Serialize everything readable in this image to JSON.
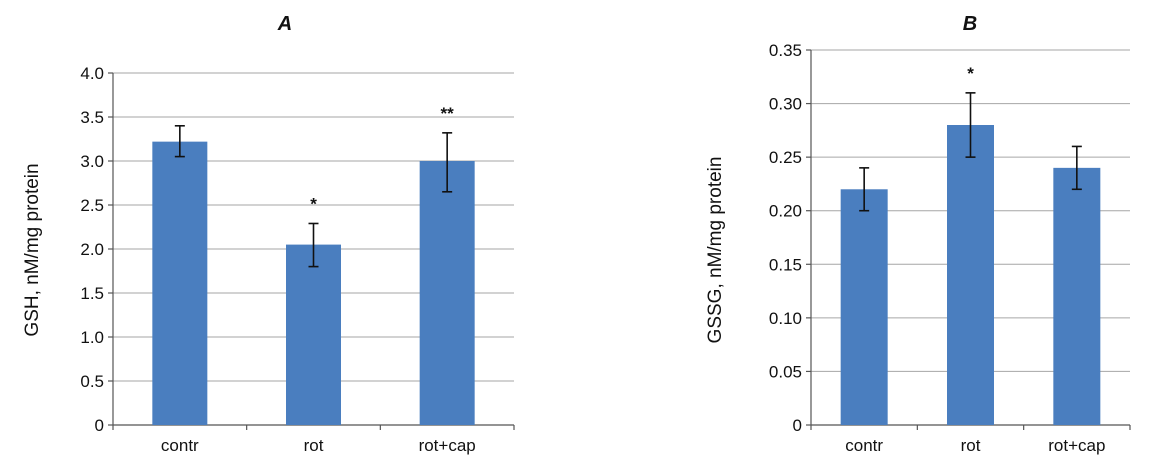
{
  "chart_data": [
    {
      "type": "bar",
      "title": "A",
      "ylabel": "GSH, nM/mg protein",
      "categories": [
        "contr",
        "rot",
        "rot+cap"
      ],
      "values": [
        3.22,
        2.05,
        3.0
      ],
      "error_low": [
        3.05,
        1.8,
        2.65
      ],
      "error_high": [
        3.4,
        2.29,
        3.32
      ],
      "annotations": [
        "",
        "*",
        "**"
      ],
      "ylim": [
        0,
        4.0
      ],
      "yticks": [
        "0",
        "0.5",
        "1.0",
        "1.5",
        "2.0",
        "2.5",
        "3.0",
        "3.5",
        "4.0"
      ],
      "grid": true,
      "bar_color": "#4a7ebf"
    },
    {
      "type": "bar",
      "title": "B",
      "ylabel": "GSSG, nM/mg protein",
      "categories": [
        "contr",
        "rot",
        "rot+cap"
      ],
      "values": [
        0.22,
        0.28,
        0.24
      ],
      "error_low": [
        0.2,
        0.25,
        0.22
      ],
      "error_high": [
        0.24,
        0.31,
        0.26
      ],
      "annotations": [
        "",
        "*",
        ""
      ],
      "ylim": [
        0,
        0.35
      ],
      "yticks": [
        "0",
        "0.05",
        "0.10",
        "0.15",
        "0.20",
        "0.25",
        "0.30",
        "0.35"
      ],
      "grid": true,
      "bar_color": "#4a7ebf"
    }
  ]
}
